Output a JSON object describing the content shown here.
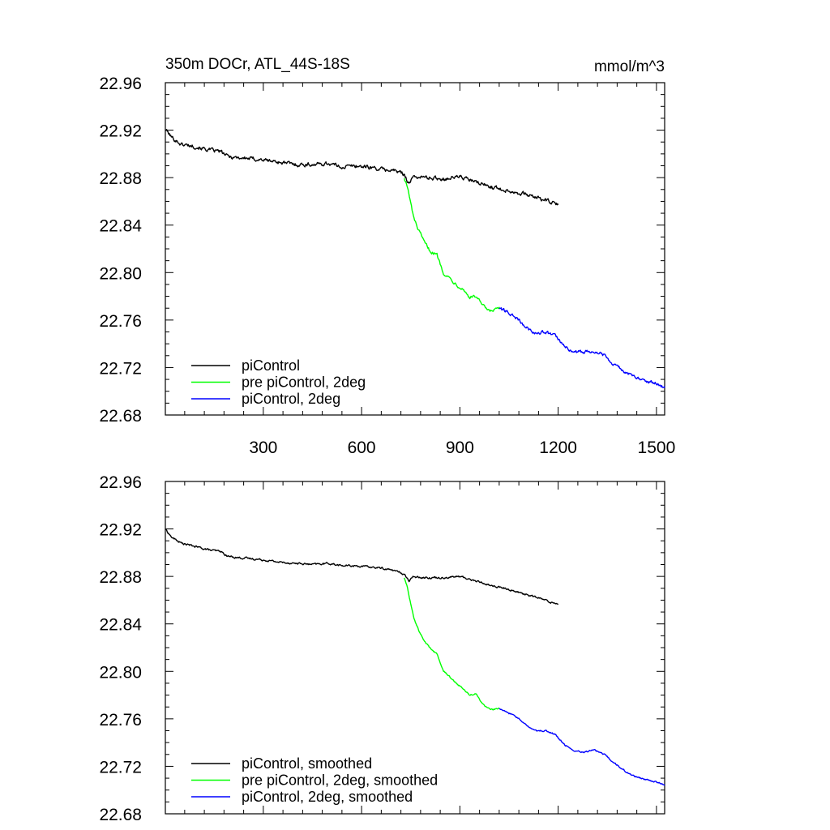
{
  "figure": {
    "title_left": "350m DOCr, ATL_44S-18S",
    "title_right": "mmol/m^3"
  },
  "chart_data": [
    {
      "type": "line",
      "title": "350m DOCr, ATL_44S-18S",
      "units": "mmol/m^3",
      "xlim": [
        1,
        1525
      ],
      "ylim": [
        22.68,
        22.96
      ],
      "x_ticks": [
        300,
        600,
        900,
        1200,
        1500
      ],
      "x_tick_labels": [
        "300",
        "600",
        "900",
        "1200",
        "1500"
      ],
      "y_ticks": [
        22.68,
        22.72,
        22.76,
        22.8,
        22.84,
        22.88,
        22.92,
        22.96
      ],
      "y_tick_labels": [
        "22.68",
        "22.72",
        "22.76",
        "22.80",
        "22.84",
        "22.88",
        "22.92",
        "22.96"
      ],
      "legend_position": "bottom-left",
      "series": [
        {
          "name": "piControl",
          "color": "#000000",
          "x": [
            1,
            20,
            50,
            80,
            110,
            140,
            170,
            190,
            220,
            260,
            300,
            350,
            400,
            450,
            500,
            540,
            580,
            620,
            660,
            700,
            730,
            745,
            760,
            800,
            850,
            900,
            950,
            1000,
            1050,
            1100,
            1150,
            1180,
            1200
          ],
          "y": [
            22.921,
            22.914,
            22.908,
            22.907,
            22.905,
            22.903,
            22.902,
            22.898,
            22.897,
            22.896,
            22.895,
            22.893,
            22.891,
            22.891,
            22.892,
            22.889,
            22.89,
            22.889,
            22.887,
            22.886,
            22.883,
            22.875,
            22.881,
            22.88,
            22.879,
            22.881,
            22.876,
            22.872,
            22.869,
            22.866,
            22.862,
            22.859,
            22.857
          ],
          "noise": 0.003
        },
        {
          "name": "pre piControl, 2deg",
          "color": "#00ff00",
          "x": [
            730,
            740,
            750,
            760,
            775,
            790,
            810,
            830,
            850,
            870,
            890,
            910,
            930,
            950,
            970,
            990,
            1010,
            1020
          ],
          "y": [
            22.88,
            22.872,
            22.858,
            22.845,
            22.835,
            22.826,
            22.818,
            22.815,
            22.8,
            22.795,
            22.79,
            22.786,
            22.779,
            22.78,
            22.772,
            22.767,
            22.769,
            22.77
          ],
          "noise": 0.0025
        },
        {
          "name": "piControl, 2deg",
          "color": "#0000ff",
          "x": [
            1020,
            1050,
            1080,
            1100,
            1130,
            1160,
            1190,
            1220,
            1250,
            1280,
            1310,
            1340,
            1370,
            1400,
            1420,
            1450,
            1480,
            1500,
            1525
          ],
          "y": [
            22.77,
            22.766,
            22.76,
            22.754,
            22.749,
            22.75,
            22.747,
            22.737,
            22.733,
            22.733,
            22.734,
            22.731,
            22.723,
            22.717,
            22.714,
            22.71,
            22.708,
            22.707,
            22.703
          ],
          "noise": 0.0025
        }
      ]
    },
    {
      "type": "line",
      "xlim": [
        1,
        1525
      ],
      "ylim": [
        22.68,
        22.96
      ],
      "y_ticks": [
        22.68,
        22.72,
        22.76,
        22.8,
        22.84,
        22.88,
        22.92,
        22.96
      ],
      "y_tick_labels": [
        "22.68",
        "22.72",
        "22.76",
        "22.80",
        "22.84",
        "22.88",
        "22.92",
        "22.96"
      ],
      "legend_position": "bottom-left",
      "series": [
        {
          "name": "piControl, smoothed",
          "color": "#000000",
          "x": [
            1,
            20,
            50,
            80,
            110,
            140,
            170,
            190,
            220,
            260,
            300,
            350,
            400,
            450,
            500,
            540,
            580,
            620,
            660,
            700,
            730,
            745,
            760,
            800,
            850,
            900,
            950,
            1000,
            1050,
            1100,
            1150,
            1180,
            1200
          ],
          "y": [
            22.92,
            22.913,
            22.908,
            22.906,
            22.904,
            22.902,
            22.901,
            22.897,
            22.896,
            22.895,
            22.894,
            22.892,
            22.891,
            22.89,
            22.891,
            22.889,
            22.889,
            22.888,
            22.887,
            22.885,
            22.882,
            22.876,
            22.88,
            22.879,
            22.879,
            22.88,
            22.876,
            22.872,
            22.869,
            22.865,
            22.861,
            22.858,
            22.857
          ],
          "noise": 0.0015
        },
        {
          "name": "pre piControl, 2deg, smoothed",
          "color": "#00ff00",
          "x": [
            730,
            740,
            750,
            760,
            775,
            790,
            810,
            830,
            850,
            870,
            890,
            910,
            930,
            950,
            970,
            990,
            1010,
            1020
          ],
          "y": [
            22.879,
            22.871,
            22.857,
            22.844,
            22.834,
            22.826,
            22.819,
            22.815,
            22.801,
            22.795,
            22.79,
            22.786,
            22.78,
            22.781,
            22.772,
            22.768,
            22.768,
            22.769
          ],
          "noise": 0.0012
        },
        {
          "name": "piControl, 2deg, smoothed",
          "color": "#0000ff",
          "x": [
            1020,
            1050,
            1080,
            1100,
            1130,
            1160,
            1190,
            1220,
            1250,
            1280,
            1310,
            1340,
            1370,
            1400,
            1420,
            1450,
            1480,
            1500,
            1525
          ],
          "y": [
            22.769,
            22.765,
            22.76,
            22.755,
            22.75,
            22.75,
            22.747,
            22.738,
            22.733,
            22.732,
            22.734,
            22.73,
            22.723,
            22.717,
            22.713,
            22.71,
            22.708,
            22.707,
            22.704
          ],
          "noise": 0.0012
        }
      ]
    }
  ]
}
